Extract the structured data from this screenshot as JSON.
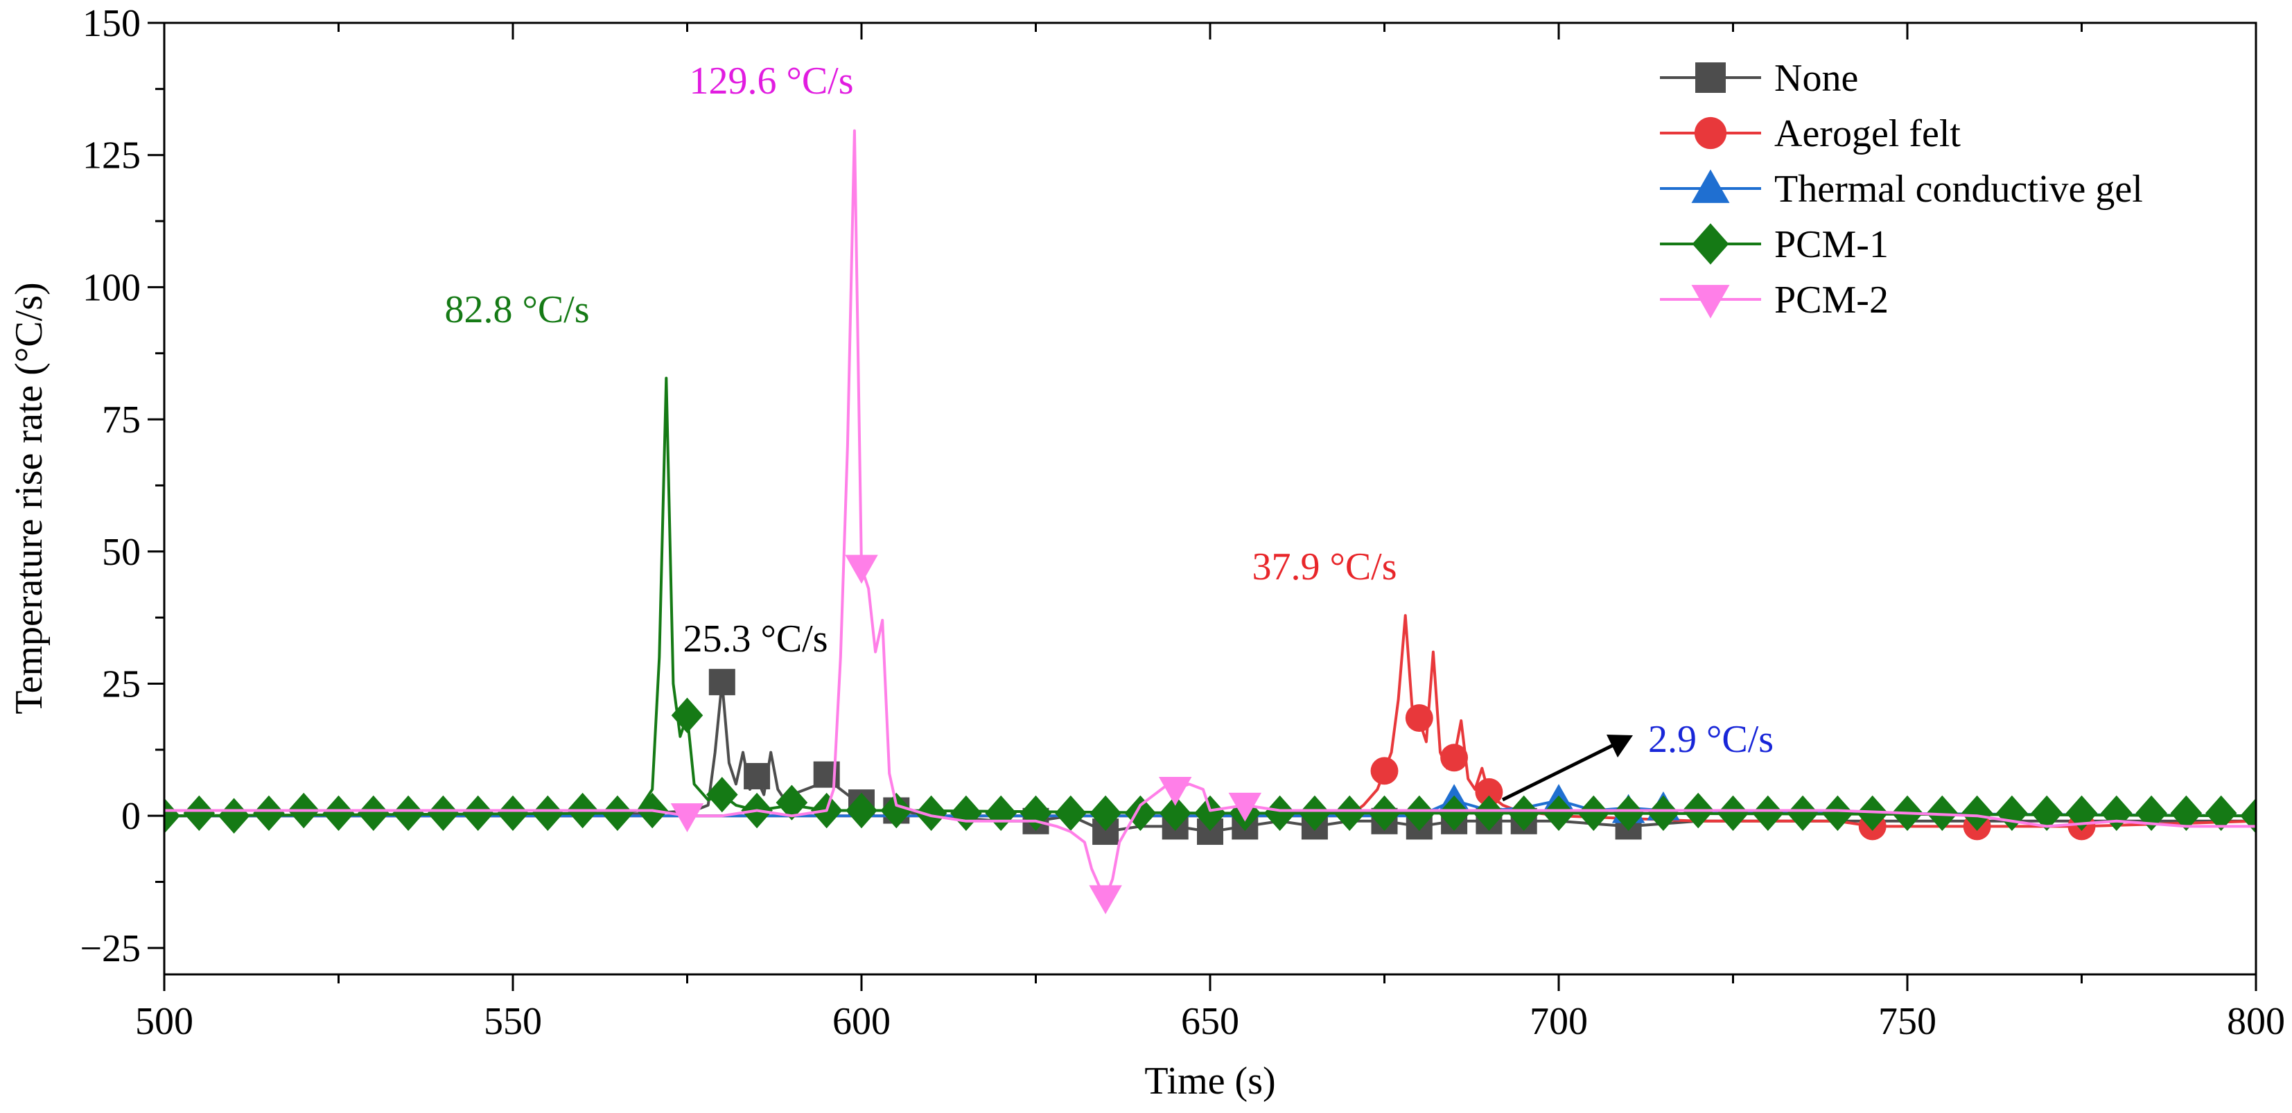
{
  "chart_data": {
    "type": "line",
    "title": "",
    "xlabel": "Time (s)",
    "ylabel": "Temperature rise rate (°C/s)",
    "xlim": [
      500,
      800
    ],
    "ylim": [
      -30,
      150
    ],
    "xticks": [
      500,
      550,
      600,
      650,
      700,
      750,
      800
    ],
    "yticks": [
      -25,
      0,
      25,
      50,
      75,
      100,
      125,
      150
    ],
    "x_tick_labels": [
      "500",
      "550",
      "600",
      "650",
      "700",
      "750",
      "800"
    ],
    "y_tick_labels": [
      "−25",
      "0",
      "25",
      "50",
      "75",
      "100",
      "125",
      "150"
    ],
    "legend_position": "top-right",
    "series": [
      {
        "name": "None",
        "color": "#4d4d4d",
        "marker": "square",
        "points": [
          [
            500,
            0
          ],
          [
            560,
            0
          ],
          [
            570,
            0.5
          ],
          [
            576,
            1
          ],
          [
            578,
            2
          ],
          [
            579,
            12
          ],
          [
            580,
            25.3
          ],
          [
            581,
            10
          ],
          [
            582,
            6
          ],
          [
            583,
            12
          ],
          [
            584,
            5
          ],
          [
            585,
            7
          ],
          [
            586,
            4
          ],
          [
            587,
            12
          ],
          [
            588,
            5
          ],
          [
            589,
            3
          ],
          [
            590,
            4
          ],
          [
            592,
            5
          ],
          [
            594,
            6
          ],
          [
            595,
            7
          ],
          [
            596,
            6
          ],
          [
            598,
            4
          ],
          [
            600,
            2
          ],
          [
            602,
            1
          ],
          [
            605,
            1
          ],
          [
            610,
            0
          ],
          [
            620,
            -1
          ],
          [
            625,
            -1
          ],
          [
            630,
            0
          ],
          [
            635,
            -3
          ],
          [
            640,
            -2
          ],
          [
            645,
            -2
          ],
          [
            650,
            -3
          ],
          [
            655,
            -2
          ],
          [
            660,
            -1
          ],
          [
            665,
            -2
          ],
          [
            670,
            -1
          ],
          [
            675,
            -1
          ],
          [
            680,
            -2
          ],
          [
            685,
            -1
          ],
          [
            690,
            -1
          ],
          [
            695,
            -1
          ],
          [
            700,
            -1
          ],
          [
            710,
            -2
          ],
          [
            720,
            -1
          ],
          [
            740,
            -1
          ],
          [
            760,
            -1
          ],
          [
            780,
            -1
          ],
          [
            800,
            -1
          ]
        ],
        "marker_points": [
          [
            580,
            25.3
          ],
          [
            585,
            7.5
          ],
          [
            595,
            7.8
          ],
          [
            600,
            2.5
          ],
          [
            605,
            1
          ],
          [
            625,
            -1
          ],
          [
            635,
            -3
          ],
          [
            645,
            -2
          ],
          [
            650,
            -3
          ],
          [
            655,
            -2
          ],
          [
            665,
            -2
          ],
          [
            675,
            -1
          ],
          [
            680,
            -2
          ],
          [
            685,
            -1
          ],
          [
            690,
            -1
          ],
          [
            695,
            -1
          ],
          [
            710,
            -2
          ]
        ]
      },
      {
        "name": "Aerogel felt",
        "color": "#e8383b",
        "marker": "circle",
        "points": [
          [
            500,
            0
          ],
          [
            600,
            0
          ],
          [
            670,
            0
          ],
          [
            672,
            2
          ],
          [
            674,
            5
          ],
          [
            675,
            8.5
          ],
          [
            676,
            12
          ],
          [
            677,
            22
          ],
          [
            678,
            37.9
          ],
          [
            679,
            20
          ],
          [
            680,
            18
          ],
          [
            681,
            14
          ],
          [
            682,
            31
          ],
          [
            683,
            12
          ],
          [
            684,
            9
          ],
          [
            685,
            11
          ],
          [
            686,
            18
          ],
          [
            687,
            7
          ],
          [
            688,
            5
          ],
          [
            689,
            9
          ],
          [
            690,
            4
          ],
          [
            692,
            2
          ],
          [
            694,
            1
          ],
          [
            700,
            0
          ],
          [
            720,
            -1
          ],
          [
            740,
            -1
          ],
          [
            745,
            -2
          ],
          [
            760,
            -2
          ],
          [
            775,
            -2
          ],
          [
            800,
            -1
          ]
        ],
        "marker_points": [
          [
            675,
            8.5
          ],
          [
            680,
            18.5
          ],
          [
            685,
            11
          ],
          [
            690,
            4.5
          ],
          [
            745,
            -2
          ],
          [
            760,
            -2
          ],
          [
            775,
            -2
          ]
        ]
      },
      {
        "name": "Thermal conductive gel",
        "color": "#1f6fd1",
        "marker": "triangle-up",
        "points": [
          [
            500,
            0
          ],
          [
            600,
            0
          ],
          [
            650,
            0
          ],
          [
            680,
            0
          ],
          [
            685,
            2.9
          ],
          [
            690,
            1
          ],
          [
            695,
            1.5
          ],
          [
            700,
            2.9
          ],
          [
            705,
            1
          ],
          [
            710,
            1.5
          ],
          [
            715,
            1
          ],
          [
            720,
            1
          ],
          [
            740,
            0.5
          ],
          [
            800,
            0
          ]
        ],
        "marker_points": [
          [
            685,
            2.9
          ],
          [
            700,
            2.9
          ],
          [
            710,
            1
          ],
          [
            715,
            1.5
          ]
        ]
      },
      {
        "name": "PCM-1",
        "color": "#157a15",
        "marker": "diamond",
        "points": [
          [
            500,
            0
          ],
          [
            565,
            0.5
          ],
          [
            568,
            1
          ],
          [
            570,
            5
          ],
          [
            571,
            30
          ],
          [
            572,
            82.8
          ],
          [
            573,
            25
          ],
          [
            574,
            15
          ],
          [
            575,
            19
          ],
          [
            576,
            6
          ],
          [
            578,
            3
          ],
          [
            580,
            4
          ],
          [
            582,
            2
          ],
          [
            585,
            1
          ],
          [
            590,
            2
          ],
          [
            595,
            1
          ],
          [
            600,
            1
          ],
          [
            605,
            1
          ],
          [
            650,
            0.5
          ],
          [
            700,
            0.5
          ],
          [
            750,
            0.3
          ],
          [
            800,
            0
          ]
        ],
        "marker_points": [
          [
            500,
            0
          ],
          [
            505,
            0.5
          ],
          [
            510,
            0
          ],
          [
            515,
            0.5
          ],
          [
            520,
            1
          ],
          [
            525,
            0.5
          ],
          [
            530,
            0.5
          ],
          [
            535,
            0.5
          ],
          [
            540,
            0.5
          ],
          [
            545,
            0.5
          ],
          [
            550,
            0.5
          ],
          [
            555,
            0.5
          ],
          [
            560,
            1
          ],
          [
            565,
            0.5
          ],
          [
            570,
            1
          ],
          [
            575,
            19
          ],
          [
            580,
            4
          ],
          [
            585,
            1
          ],
          [
            590,
            2.5
          ],
          [
            595,
            1
          ],
          [
            600,
            1
          ],
          [
            605,
            1
          ],
          [
            610,
            0.5
          ],
          [
            615,
            0.5
          ],
          [
            620,
            0.5
          ],
          [
            625,
            0.5
          ],
          [
            630,
            0.5
          ],
          [
            635,
            0.5
          ],
          [
            640,
            0.5
          ],
          [
            645,
            0.5
          ],
          [
            650,
            0.5
          ],
          [
            655,
            0.5
          ],
          [
            660,
            0.5
          ],
          [
            665,
            0.5
          ],
          [
            670,
            0.5
          ],
          [
            675,
            0.5
          ],
          [
            680,
            0.5
          ],
          [
            685,
            0.5
          ],
          [
            690,
            0.5
          ],
          [
            695,
            0.5
          ],
          [
            700,
            0.5
          ],
          [
            705,
            0.5
          ],
          [
            710,
            0.5
          ],
          [
            715,
            0.5
          ],
          [
            720,
            1
          ],
          [
            725,
            0.5
          ],
          [
            730,
            0.5
          ],
          [
            735,
            0.5
          ],
          [
            740,
            0.5
          ],
          [
            745,
            0.5
          ],
          [
            750,
            0.5
          ],
          [
            755,
            0.5
          ],
          [
            760,
            0.5
          ],
          [
            765,
            0.5
          ],
          [
            770,
            0.5
          ],
          [
            775,
            0.5
          ],
          [
            780,
            0.5
          ],
          [
            785,
            0.5
          ],
          [
            790,
            0.5
          ],
          [
            795,
            0.5
          ],
          [
            800,
            0
          ]
        ]
      },
      {
        "name": "PCM-2",
        "color": "#ff7fe8",
        "marker": "triangle-down",
        "points": [
          [
            500,
            1
          ],
          [
            570,
            1
          ],
          [
            575,
            0
          ],
          [
            580,
            0
          ],
          [
            585,
            1
          ],
          [
            590,
            0
          ],
          [
            595,
            1
          ],
          [
            596,
            5
          ],
          [
            597,
            30
          ],
          [
            598,
            70
          ],
          [
            599,
            129.6
          ],
          [
            600,
            47
          ],
          [
            601,
            43
          ],
          [
            602,
            31
          ],
          [
            603,
            37
          ],
          [
            604,
            8
          ],
          [
            605,
            2
          ],
          [
            610,
            0
          ],
          [
            615,
            -1
          ],
          [
            620,
            -1
          ],
          [
            625,
            -1
          ],
          [
            628,
            -2
          ],
          [
            630,
            -3
          ],
          [
            632,
            -5
          ],
          [
            633,
            -10
          ],
          [
            634,
            -13
          ],
          [
            635,
            -15.5
          ],
          [
            636,
            -12
          ],
          [
            637,
            -5
          ],
          [
            640,
            2
          ],
          [
            642,
            4
          ],
          [
            644,
            6
          ],
          [
            645,
            5
          ],
          [
            647,
            6
          ],
          [
            649,
            5
          ],
          [
            650,
            1
          ],
          [
            655,
            2
          ],
          [
            660,
            1
          ],
          [
            670,
            1
          ],
          [
            680,
            1
          ],
          [
            690,
            1
          ],
          [
            700,
            1
          ],
          [
            720,
            1
          ],
          [
            740,
            1
          ],
          [
            760,
            0
          ],
          [
            770,
            -2
          ],
          [
            780,
            -1
          ],
          [
            790,
            -2
          ],
          [
            800,
            -2
          ]
        ],
        "marker_points": [
          [
            575,
            0
          ],
          [
            600,
            47
          ],
          [
            635,
            -15.5
          ],
          [
            645,
            5
          ],
          [
            655,
            2
          ]
        ]
      }
    ],
    "annotations": [
      {
        "text": "82.8 °C/s",
        "color": "#157a15"
      },
      {
        "text": "129.6 °C/s",
        "color": "#e11ce0"
      },
      {
        "text": "25.3 °C/s",
        "color": "#000000"
      },
      {
        "text": "37.9 °C/s",
        "color": "#e8262a"
      },
      {
        "text": "2.9 °C/s",
        "color": "#1826d8"
      }
    ]
  }
}
